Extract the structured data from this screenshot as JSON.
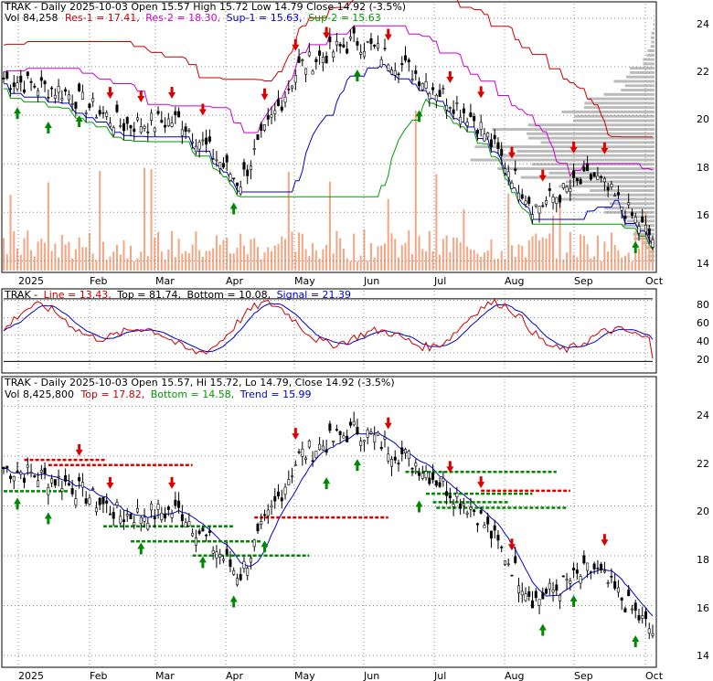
{
  "colors": {
    "price": "#000000",
    "resistance": "#cc0000",
    "resistance2": "#cc00cc",
    "support": "#0000cc",
    "support2": "#009900",
    "volume": "#f4a582",
    "volume_profile": "#bbbbbb",
    "up_arrow": "#008800",
    "down_arrow": "#dd0000",
    "grid": "#888888",
    "panel_border": "#000000",
    "line": "#cc0000",
    "signal": "#0000cc"
  },
  "x_labels": [
    "2025",
    "Feb",
    "Mar",
    "Apr",
    "May",
    "Jun",
    "Jul",
    "Aug",
    "Sep",
    "Oct"
  ],
  "panel1": {
    "header": {
      "symbol_part": "TRAK - Daily 2025-10-03 Open 15.57  High 15.72  Low 14.79  Close 14.92 (-3.5%)",
      "vol": "Vol 84,258",
      "res1": "Res-1 = 17.41,",
      "res2": "Res-2 = 18.30,",
      "sup1": "Sup-1 = 15.63,",
      "sup2": "Sup-2 = 15.63"
    },
    "y_ticks": [
      "24",
      "22",
      "20",
      "18",
      "16",
      "14"
    ]
  },
  "panel2": {
    "header": {
      "symbol": "TRAK -",
      "line": "Line = 13.43,",
      "top": "Top = 81.74,",
      "bottom": "Bottom = 10.08,",
      "signal": "Signal = 21.39"
    },
    "y_ticks": [
      "80",
      "60",
      "40",
      "20"
    ]
  },
  "panel3": {
    "header": {
      "line1": "TRAK - Daily 2025-10-03 Open 15.57, Hi 15.72, Lo 14.79, Close 14.92 (-3.5%)",
      "vol": "Vol 8,425,800",
      "top": "Top = 17.82,",
      "bottom": "Bottom = 14.58,",
      "trend": "Trend = 15.99"
    },
    "y_ticks": [
      "24",
      "22",
      "20",
      "18",
      "16",
      "14"
    ]
  },
  "chart_data": {
    "type": "line",
    "title": "TRAK - Daily 2025-10-03",
    "x_axis": [
      "2025",
      "Feb",
      "Mar",
      "Apr",
      "May",
      "Jun",
      "Jul",
      "Aug",
      "Sep",
      "Oct"
    ],
    "ylim": [
      13.6,
      24.6
    ],
    "close_series": [
      {
        "month": "Jan",
        "close": 21.5
      },
      {
        "month": "Feb",
        "close": 21.0
      },
      {
        "month": "Mar",
        "close": 19.6
      },
      {
        "month": "Apr",
        "close": 19.8
      },
      {
        "month": "Apr-mid",
        "close": 17.2
      },
      {
        "month": "May",
        "close": 22.0
      },
      {
        "month": "May-late",
        "close": 23.1
      },
      {
        "month": "Jun",
        "close": 21.7
      },
      {
        "month": "Jul",
        "close": 19.8
      },
      {
        "month": "Aug",
        "close": 16.2
      },
      {
        "month": "Sep",
        "close": 17.5
      },
      {
        "month": "Oct",
        "close": 14.92
      }
    ],
    "indicator": {
      "line": 13.43,
      "top": 81.74,
      "bottom": 10.08,
      "signal": 21.39,
      "ylim": [
        0,
        90
      ]
    },
    "levels": {
      "res1": 17.41,
      "res2": 18.3,
      "sup1": 15.63,
      "sup2": 15.63,
      "trend": 15.99,
      "top": 17.82,
      "bottom": 14.58
    }
  }
}
